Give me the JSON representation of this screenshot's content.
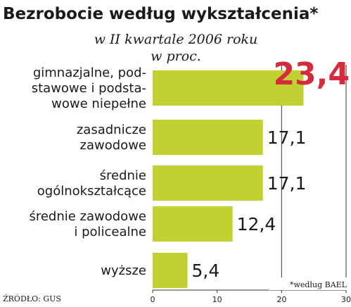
{
  "colors": {
    "bar": "#c2d132",
    "highlight_value": "#d42c3c",
    "grid": "#333333",
    "text": "#1a1a1a"
  },
  "chart_data": {
    "type": "bar",
    "orientation": "horizontal",
    "title": "Bezrobocie według wykształcenia*",
    "subtitle": [
      "w II kwartale 2006 roku",
      "w proc."
    ],
    "categories": [
      [
        "gimnazjalne, pod-",
        "stawowe i podsta-",
        "wowe niepełne"
      ],
      [
        "zasadnicze",
        "zawodowe"
      ],
      [
        "średnie",
        "ogólnokształcące"
      ],
      [
        "średnie zawodowe",
        "i policealne"
      ],
      [
        "wyższe"
      ]
    ],
    "values": [
      23.4,
      17.1,
      17.1,
      12.4,
      5.4
    ],
    "value_labels": [
      "23,4",
      "17,1",
      "17,1",
      "12,4",
      "5,4"
    ],
    "highlight_index": 0,
    "xlim": [
      0,
      30
    ],
    "xticks": [
      "0",
      "10",
      "20",
      "30"
    ],
    "gridlines": [
      20,
      30
    ],
    "footnote": "*według BAEL",
    "source": "ŹRÓDŁO: GUS"
  }
}
